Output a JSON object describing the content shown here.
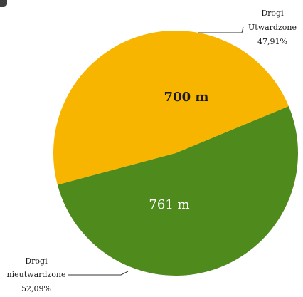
{
  "chart_data": {
    "type": "pie",
    "title": "",
    "unit": "m",
    "slices": [
      {
        "label_line1": "Drogi",
        "label_line2": "Utwardzone",
        "value": 700,
        "value_label": "700 m",
        "percent": 47.91,
        "percent_label": "47,91%",
        "color": "#f7b500"
      },
      {
        "label_line1": "Drogi",
        "label_line2": "nieutwardzone",
        "value": 761,
        "value_label": "761 m",
        "percent": 52.09,
        "percent_label": "52,09%",
        "color": "#4f8a1c"
      }
    ],
    "value_label_colors": [
      "#1a1a1a",
      "#ffffff"
    ],
    "legend": "callouts"
  }
}
